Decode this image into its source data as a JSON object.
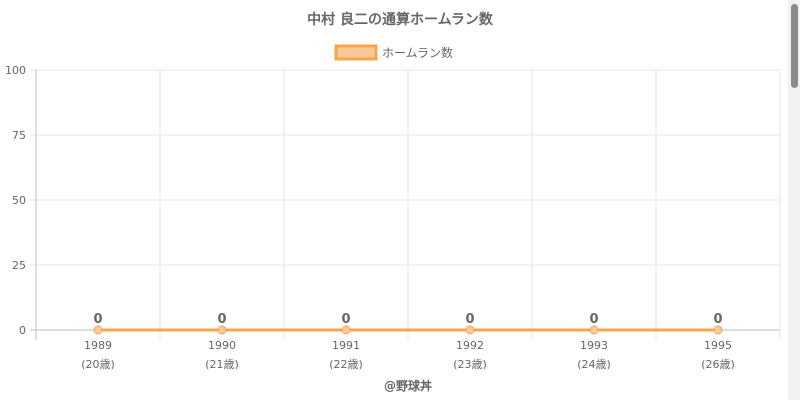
{
  "chart_data": {
    "type": "line",
    "title": "中村 良二の通算ホームラン数",
    "legend": {
      "label": "ホームラン数",
      "position": "top"
    },
    "categories": [
      "1989",
      "1990",
      "1991",
      "1992",
      "1993",
      "1995"
    ],
    "sublabels": [
      "(20歳)",
      "(21歳)",
      "(22歳)",
      "(23歳)",
      "(24歳)",
      "(26歳)"
    ],
    "series": [
      {
        "name": "ホームラン数",
        "values": [
          0,
          0,
          0,
          0,
          0,
          0
        ]
      }
    ],
    "ylim": [
      0,
      100
    ],
    "yticks": [
      0,
      25,
      50,
      75,
      100
    ],
    "grid": true,
    "credit": "@野球丼",
    "colors": {
      "line": "#f5a54a",
      "fill": "#f9c99a",
      "grid": "#e6e6e6",
      "axis": "#bdbdbd",
      "text": "#666666"
    }
  }
}
